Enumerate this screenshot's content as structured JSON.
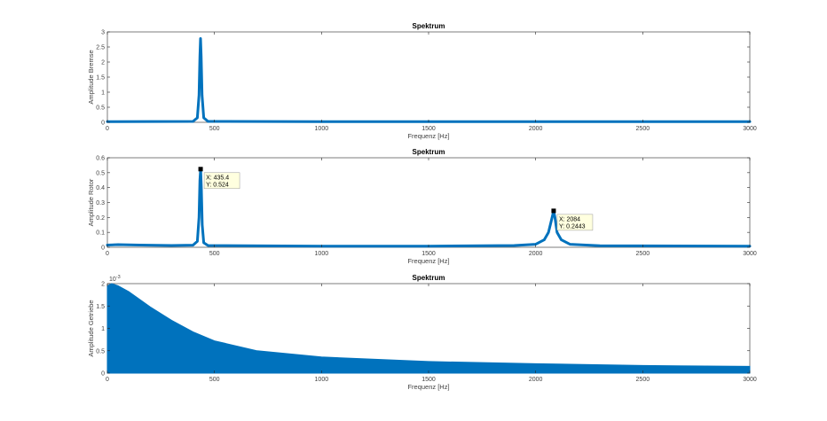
{
  "chart_data": [
    {
      "type": "line",
      "title": "Spektrum",
      "xlabel": "Frequenz [Hz]",
      "ylabel": "Amplitude Bremse",
      "xlim": [
        0,
        3000
      ],
      "ylim": [
        0,
        3
      ],
      "xticks": [
        0,
        500,
        1000,
        1500,
        2000,
        2500,
        3000
      ],
      "yticks": [
        0,
        0.5,
        1,
        1.5,
        2,
        2.5,
        3
      ],
      "ytick_labels": [
        "0",
        "0.5",
        "1",
        "1.5",
        "2",
        "2.5",
        "3"
      ],
      "exponent": "",
      "grid": false,
      "color": "#0072bd",
      "series": [
        {
          "x": [
            0,
            400,
            420,
            428,
            432,
            435,
            438,
            442,
            450,
            470,
            1000,
            2000,
            3000
          ],
          "y": [
            0.02,
            0.03,
            0.15,
            0.9,
            2.2,
            2.78,
            2.2,
            0.9,
            0.15,
            0.03,
            0.02,
            0.02,
            0.02
          ]
        }
      ],
      "datatips": []
    },
    {
      "type": "line",
      "title": "Spektrum",
      "xlabel": "Frequenz [Hz]",
      "ylabel": "Amplitude Rotor",
      "xlim": [
        0,
        3000
      ],
      "ylim": [
        0,
        0.6
      ],
      "xticks": [
        0,
        500,
        1000,
        1500,
        2000,
        2500,
        3000
      ],
      "yticks": [
        0,
        0.1,
        0.2,
        0.3,
        0.4,
        0.5,
        0.6
      ],
      "ytick_labels": [
        "0",
        "0.1",
        "0.2",
        "0.3",
        "0.4",
        "0.5",
        "0.6"
      ],
      "exponent": "",
      "grid": false,
      "color": "#0072bd",
      "series": [
        {
          "x": [
            0,
            50,
            150,
            300,
            400,
            420,
            428,
            432,
            435.4,
            439,
            443,
            450,
            470,
            1000,
            1500,
            1900,
            2000,
            2040,
            2060,
            2072,
            2080,
            2084,
            2090,
            2100,
            2120,
            2160,
            2300,
            3000
          ],
          "y": [
            0.015,
            0.018,
            0.015,
            0.012,
            0.014,
            0.04,
            0.2,
            0.45,
            0.524,
            0.4,
            0.15,
            0.03,
            0.012,
            0.008,
            0.008,
            0.012,
            0.02,
            0.05,
            0.1,
            0.17,
            0.22,
            0.2443,
            0.2,
            0.1,
            0.05,
            0.02,
            0.01,
            0.008
          ]
        }
      ],
      "datatips": [
        {
          "x": 435.4,
          "y": 0.524,
          "label_x": "X: 435.4",
          "label_y": "Y: 0.524"
        },
        {
          "x": 2084,
          "y": 0.2443,
          "label_x": "X: 2084",
          "label_y": "Y: 0.2443"
        }
      ]
    },
    {
      "type": "area",
      "title": "Spektrum",
      "xlabel": "Frequenz [Hz]",
      "ylabel": "Amplitude Getriebe",
      "xlim": [
        0,
        3000
      ],
      "ylim": [
        0,
        0.002
      ],
      "xticks": [
        0,
        500,
        1000,
        1500,
        2000,
        2500,
        3000
      ],
      "yticks": [
        0,
        0.0005,
        0.001,
        0.0015,
        0.002
      ],
      "ytick_labels": [
        "0",
        "0.5",
        "1",
        "1.5",
        "2"
      ],
      "exponent": "10",
      "exponent_power": "-3",
      "grid": false,
      "color": "#0072bd",
      "series": [
        {
          "x": [
            0,
            20,
            50,
            100,
            150,
            200,
            300,
            400,
            500,
            700,
            1000,
            1500,
            2000,
            2500,
            3000
          ],
          "y": [
            0.00195,
            0.002,
            0.00195,
            0.00182,
            0.00165,
            0.00148,
            0.00118,
            0.00092,
            0.00072,
            0.0005,
            0.00036,
            0.00026,
            0.00021,
            0.00017,
            0.00015
          ]
        }
      ],
      "datatips": []
    }
  ]
}
